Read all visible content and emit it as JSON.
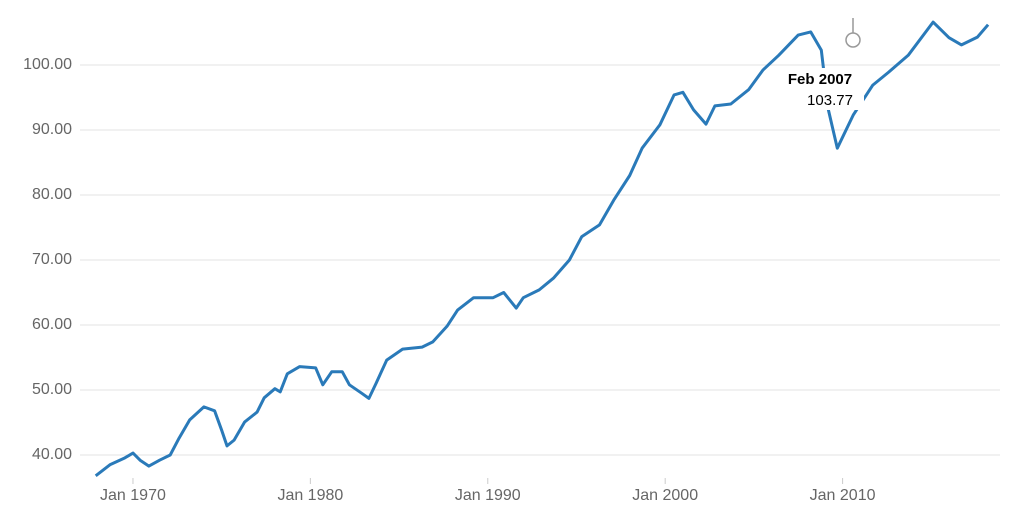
{
  "chart_data": {
    "type": "line",
    "x": [
      1967.9,
      1968.7,
      1969.5,
      1970.0,
      1970.4,
      1970.9,
      1971.5,
      1972.1,
      1972.6,
      1973.2,
      1974.0,
      1974.6,
      1975.0,
      1975.3,
      1975.7,
      1976.3,
      1977.0,
      1977.4,
      1978.0,
      1978.3,
      1978.7,
      1979.4,
      1980.3,
      1980.7,
      1981.2,
      1981.8,
      1982.2,
      1982.9,
      1983.3,
      1983.7,
      1984.3,
      1985.2,
      1986.3,
      1986.9,
      1987.7,
      1988.3,
      1989.2,
      1990.3,
      1990.9,
      1991.6,
      1992.0,
      1992.9,
      1993.7,
      1994.6,
      1995.3,
      1996.3,
      1997.1,
      1998.0,
      1998.7,
      1999.7,
      2000.5,
      2001.0,
      2001.6,
      2002.3,
      2002.8,
      2003.7,
      2004.7,
      2005.5,
      2006.4,
      2007.5,
      2008.2,
      2008.8,
      2009.2,
      2009.7,
      2010.6,
      2011.7,
      2012.6,
      2013.7,
      2015.1,
      2016.0,
      2016.7,
      2017.6,
      2018.2
    ],
    "series": [
      {
        "color": "#2a7ab9",
        "values": [
          36.8,
          38.5,
          39.5,
          40.3,
          39.2,
          38.3,
          39.2,
          40.0,
          42.6,
          45.4,
          47.4,
          46.8,
          43.8,
          41.4,
          42.3,
          45.1,
          46.6,
          48.8,
          50.2,
          49.7,
          52.5,
          53.6,
          53.4,
          50.8,
          52.8,
          52.8,
          50.8,
          49.5,
          48.7,
          51.0,
          54.6,
          56.3,
          56.6,
          57.4,
          59.8,
          62.3,
          64.2,
          64.2,
          65.0,
          62.6,
          64.2,
          65.4,
          67.2,
          70.0,
          73.6,
          75.4,
          79.2,
          83.0,
          87.2,
          90.8,
          95.4,
          95.8,
          93.1,
          90.9,
          93.7,
          94.0,
          96.2,
          99.2,
          101.5,
          104.6,
          105.1,
          102.3,
          93.1,
          87.2,
          92.3,
          96.9,
          98.9,
          101.5,
          106.6,
          104.2,
          103.1,
          104.3,
          106.2
        ]
      }
    ],
    "xlim": [
      1966,
      2020
    ],
    "xticks": [
      {
        "value": 1970,
        "label": "Jan 1970"
      },
      {
        "value": 1980,
        "label": "Jan 1980"
      },
      {
        "value": 1990,
        "label": "Jan 1990"
      },
      {
        "value": 2000,
        "label": "Jan 2000"
      },
      {
        "value": 2010,
        "label": "Jan 2010"
      }
    ],
    "ylim": [
      35,
      108
    ],
    "yticks": [
      {
        "value": 40,
        "label": "40.00"
      },
      {
        "value": 50,
        "label": "50.00"
      },
      {
        "value": 60,
        "label": "60.00"
      },
      {
        "value": 70,
        "label": "70.00"
      },
      {
        "value": 80,
        "label": "80.00"
      },
      {
        "value": 90,
        "label": "90.00"
      },
      {
        "value": 100,
        "label": "100.00"
      }
    ],
    "grid": true,
    "tooltip": {
      "title": "Feb 2007",
      "value": 103.77
    }
  }
}
